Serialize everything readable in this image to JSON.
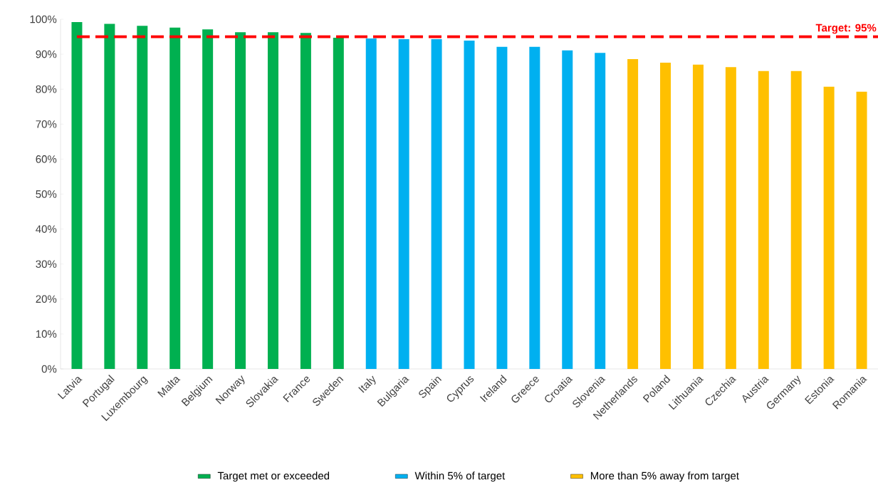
{
  "chart_data": {
    "type": "bar",
    "categories": [
      "Latvia",
      "Portugal",
      "Luxembourg",
      "Malta",
      "Belgium",
      "Norway",
      "Slovakia",
      "France",
      "Sweden",
      "Italy",
      "Bulgaria",
      "Spain",
      "Cyprus",
      "Ireland",
      "Greece",
      "Croatia",
      "Slovenia",
      "Netherlands",
      "Poland",
      "Lithuania",
      "Czechia",
      "Austria",
      "Germany",
      "Estonia",
      "Romania"
    ],
    "series": [
      {
        "name": "Target met or exceeded",
        "color": "#00b050",
        "values": [
          99.2,
          98.7,
          98.1,
          97.6,
          97.1,
          96.3,
          96.3,
          96.1,
          94.7,
          null,
          null,
          null,
          null,
          null,
          null,
          null,
          null,
          null,
          null,
          null,
          null,
          null,
          null,
          null,
          null
        ]
      },
      {
        "name": "Within 5% of target",
        "color": "#00b0f0",
        "values": [
          null,
          null,
          null,
          null,
          null,
          null,
          null,
          null,
          null,
          94.5,
          94.3,
          94.3,
          93.9,
          92.1,
          92.1,
          91.1,
          90.4,
          null,
          null,
          null,
          null,
          null,
          null,
          null,
          null
        ]
      },
      {
        "name": "More than 5% away from target",
        "color": "#ffc000",
        "values": [
          null,
          null,
          null,
          null,
          null,
          null,
          null,
          null,
          null,
          null,
          null,
          null,
          null,
          null,
          null,
          null,
          null,
          88.6,
          87.6,
          87.0,
          86.3,
          85.2,
          85.2,
          80.7,
          79.3
        ]
      }
    ],
    "ylim": [
      0,
      100
    ],
    "yticks": [
      {
        "value": 0,
        "label": "0%"
      },
      {
        "value": 10,
        "label": "10%"
      },
      {
        "value": 20,
        "label": "20%"
      },
      {
        "value": 30,
        "label": "30%"
      },
      {
        "value": 40,
        "label": "40%"
      },
      {
        "value": 50,
        "label": "50%"
      },
      {
        "value": 60,
        "label": "60%"
      },
      {
        "value": 70,
        "label": "70%"
      },
      {
        "value": 80,
        "label": "80%"
      },
      {
        "value": 90,
        "label": "90%"
      },
      {
        "value": 100,
        "label": "100%"
      }
    ],
    "ref_lines": [
      {
        "axis": "y",
        "value": 95,
        "label": "Target: 95%",
        "color": "#ff0000",
        "line_style": "dashed"
      }
    ],
    "grid": false,
    "legend": "bottom"
  }
}
